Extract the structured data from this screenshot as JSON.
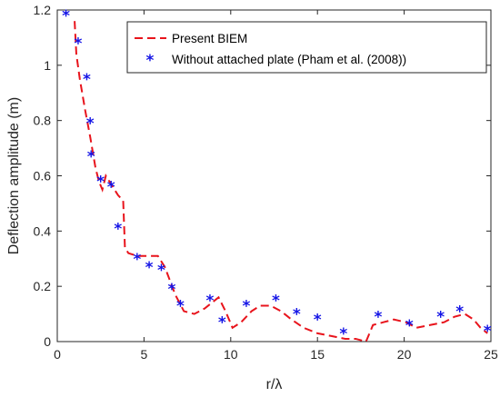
{
  "chart_data": {
    "type": "line",
    "xlabel": "r/λ",
    "ylabel": "Deflection amplitude (m)",
    "xlim": [
      0,
      25
    ],
    "ylim": [
      0,
      1.2
    ],
    "xticks": [
      0,
      5,
      10,
      15,
      20,
      25
    ],
    "yticks": [
      0,
      0.2,
      0.4,
      0.6,
      0.8,
      1,
      1.2
    ],
    "xtick_labels": [
      "0",
      "5",
      "10",
      "15",
      "20",
      "25"
    ],
    "ytick_labels": [
      "0",
      "0.2",
      "0.4",
      "0.6",
      "0.8",
      "1",
      "1.2"
    ],
    "grid": false,
    "legend_position": "top-right",
    "series": [
      {
        "name": "Present BIEM",
        "style": "dashed-line",
        "color": "#e8141c",
        "x": [
          1.0,
          1.1,
          1.3,
          1.6,
          1.9,
          2.2,
          2.4,
          2.6,
          2.8,
          3.0,
          3.2,
          3.5,
          3.8,
          3.9,
          4.1,
          4.6,
          5.2,
          5.8,
          6.2,
          6.8,
          7.3,
          7.9,
          8.5,
          8.9,
          9.3,
          9.7,
          10.1,
          10.6,
          11.2,
          11.7,
          12.3,
          12.9,
          13.5,
          14.2,
          15.0,
          15.8,
          16.6,
          17.2,
          17.8,
          18.2,
          18.8,
          19.4,
          20.1,
          20.7,
          21.5,
          22.3,
          22.9,
          23.5,
          24.0,
          24.4,
          24.8
        ],
        "y": [
          1.16,
          1.04,
          0.95,
          0.84,
          0.74,
          0.63,
          0.58,
          0.55,
          0.6,
          0.58,
          0.56,
          0.53,
          0.51,
          0.34,
          0.32,
          0.31,
          0.31,
          0.31,
          0.27,
          0.17,
          0.11,
          0.1,
          0.12,
          0.14,
          0.16,
          0.11,
          0.05,
          0.07,
          0.11,
          0.13,
          0.13,
          0.11,
          0.08,
          0.05,
          0.03,
          0.02,
          0.01,
          0.01,
          0.0,
          0.06,
          0.07,
          0.08,
          0.07,
          0.05,
          0.06,
          0.07,
          0.09,
          0.1,
          0.08,
          0.05,
          0.03
        ]
      },
      {
        "name": "Without attached plate (Pham et al. (2008))",
        "style": "markers",
        "color": "#1414e6",
        "x": [
          0.5,
          1.2,
          1.7,
          1.9,
          1.95,
          2.5,
          3.1,
          3.5,
          4.6,
          5.3,
          6.0,
          6.6,
          7.1,
          8.8,
          9.5,
          10.9,
          12.6,
          13.8,
          15.0,
          16.5,
          18.5,
          20.3,
          22.1,
          23.2,
          24.8
        ],
        "y": [
          1.18,
          1.08,
          0.95,
          0.79,
          0.67,
          0.58,
          0.56,
          0.41,
          0.3,
          0.27,
          0.26,
          0.19,
          0.13,
          0.15,
          0.07,
          0.13,
          0.15,
          0.1,
          0.08,
          0.03,
          0.09,
          0.06,
          0.09,
          0.11,
          0.04
        ]
      }
    ]
  }
}
